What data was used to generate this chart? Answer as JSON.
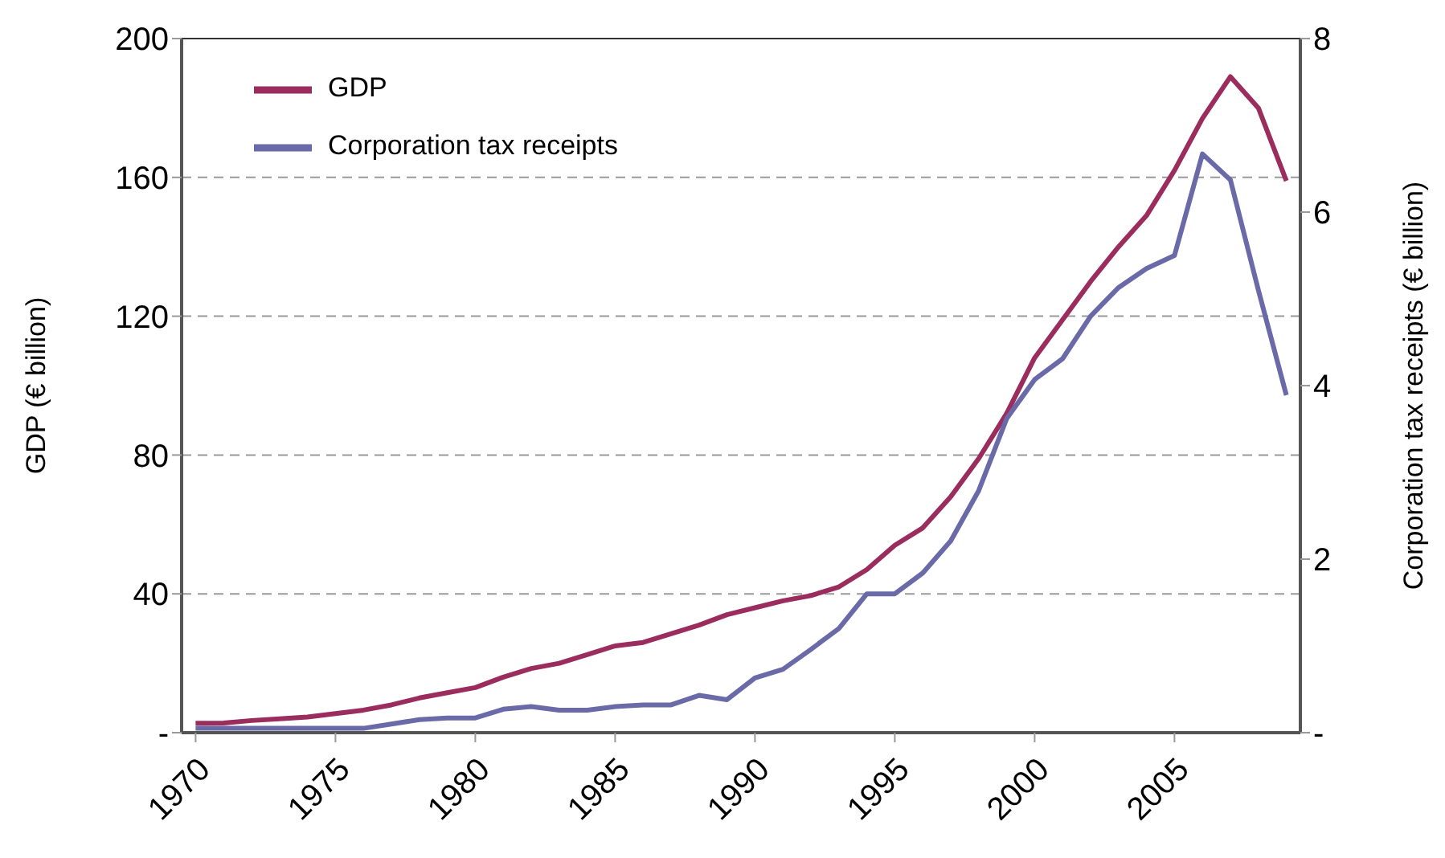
{
  "chart_data": {
    "type": "line",
    "x": [
      1970,
      1971,
      1972,
      1973,
      1974,
      1975,
      1976,
      1977,
      1978,
      1979,
      1980,
      1981,
      1982,
      1983,
      1984,
      1985,
      1986,
      1987,
      1988,
      1989,
      1990,
      1991,
      1992,
      1993,
      1994,
      1995,
      1996,
      1997,
      1998,
      1999,
      2000,
      2001,
      2002,
      2003,
      2004,
      2005,
      2006,
      2007,
      2008,
      2009
    ],
    "series": [
      {
        "name": "GDP",
        "color": "#9b2d5e",
        "values": [
          2.7,
          2.8,
          3.5,
          4,
          4.5,
          5.5,
          6.5,
          8,
          10,
          11.5,
          13,
          16,
          18.5,
          20,
          22.5,
          25,
          26,
          28.5,
          31,
          34,
          36,
          38,
          39.5,
          42,
          47,
          54,
          59,
          68,
          79,
          92,
          108,
          119,
          130,
          140,
          149,
          162,
          177,
          189,
          180,
          159
        ]
      },
      {
        "name": "Corporation tax receipts",
        "color": "#6a6aa8",
        "axis": "y2",
        "values": [
          0.05,
          0.05,
          0.05,
          0.05,
          0.05,
          0.05,
          0.05,
          0.1,
          0.15,
          0.17,
          0.17,
          0.27,
          0.3,
          0.26,
          0.26,
          0.3,
          0.32,
          0.32,
          0.43,
          0.38,
          0.63,
          0.73,
          0.96,
          1.2,
          1.6,
          1.6,
          1.84,
          2.21,
          2.79,
          3.62,
          4.07,
          4.31,
          4.8,
          5.13,
          5.35,
          5.5,
          6.67,
          6.37,
          5.1,
          3.89
        ]
      }
    ],
    "xlim": [
      1969.5,
      2009.5
    ],
    "xticks": [
      1970,
      1975,
      1980,
      1985,
      1990,
      1995,
      2000,
      2005
    ],
    "ylim": [
      0,
      200
    ],
    "yticks": [
      {
        "value": 0,
        "label": "-"
      },
      40,
      80,
      120,
      160,
      200
    ],
    "y2lim": [
      0,
      8
    ],
    "y2ticks": [
      {
        "value": 0,
        "label": "-"
      },
      2,
      4,
      6,
      8
    ],
    "ylabel": "GDP (€ billion)",
    "y2label": "Corporation tax receipts (€ billion)",
    "grid": "y",
    "legend": "top left",
    "marker": "none",
    "line_style": "solid"
  }
}
